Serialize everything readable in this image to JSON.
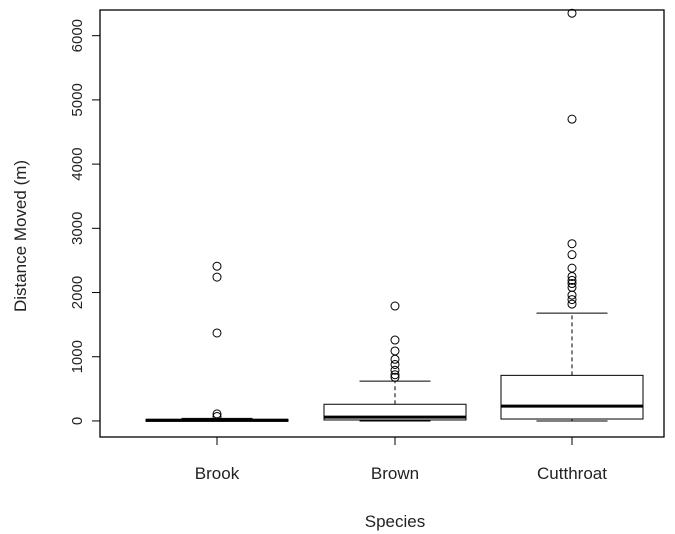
{
  "chart_data": {
    "type": "boxplot",
    "xlabel": "Species",
    "ylabel": "Distance Moved (m)",
    "ylim": [
      -250,
      6400
    ],
    "yticks": [
      0,
      1000,
      2000,
      3000,
      4000,
      5000,
      6000
    ],
    "categories": [
      "Brook",
      "Brown",
      "Cutthroat"
    ],
    "boxes": [
      {
        "category": "Brook",
        "min": 0,
        "q1": 0,
        "median": 10,
        "q3": 25,
        "max": 40,
        "outliers": [
          70,
          110,
          1370,
          2240,
          2410
        ]
      },
      {
        "category": "Brown",
        "min": 0,
        "q1": 15,
        "median": 60,
        "q3": 260,
        "max": 620,
        "outliers": [
          680,
          720,
          790,
          880,
          960,
          1090,
          1260,
          1790
        ]
      },
      {
        "category": "Cutthroat",
        "min": 0,
        "q1": 30,
        "median": 230,
        "q3": 710,
        "max": 1680,
        "outliers": [
          1820,
          1890,
          1960,
          2080,
          2140,
          2190,
          2250,
          2380,
          2590,
          2760,
          4700,
          6350
        ]
      }
    ]
  }
}
